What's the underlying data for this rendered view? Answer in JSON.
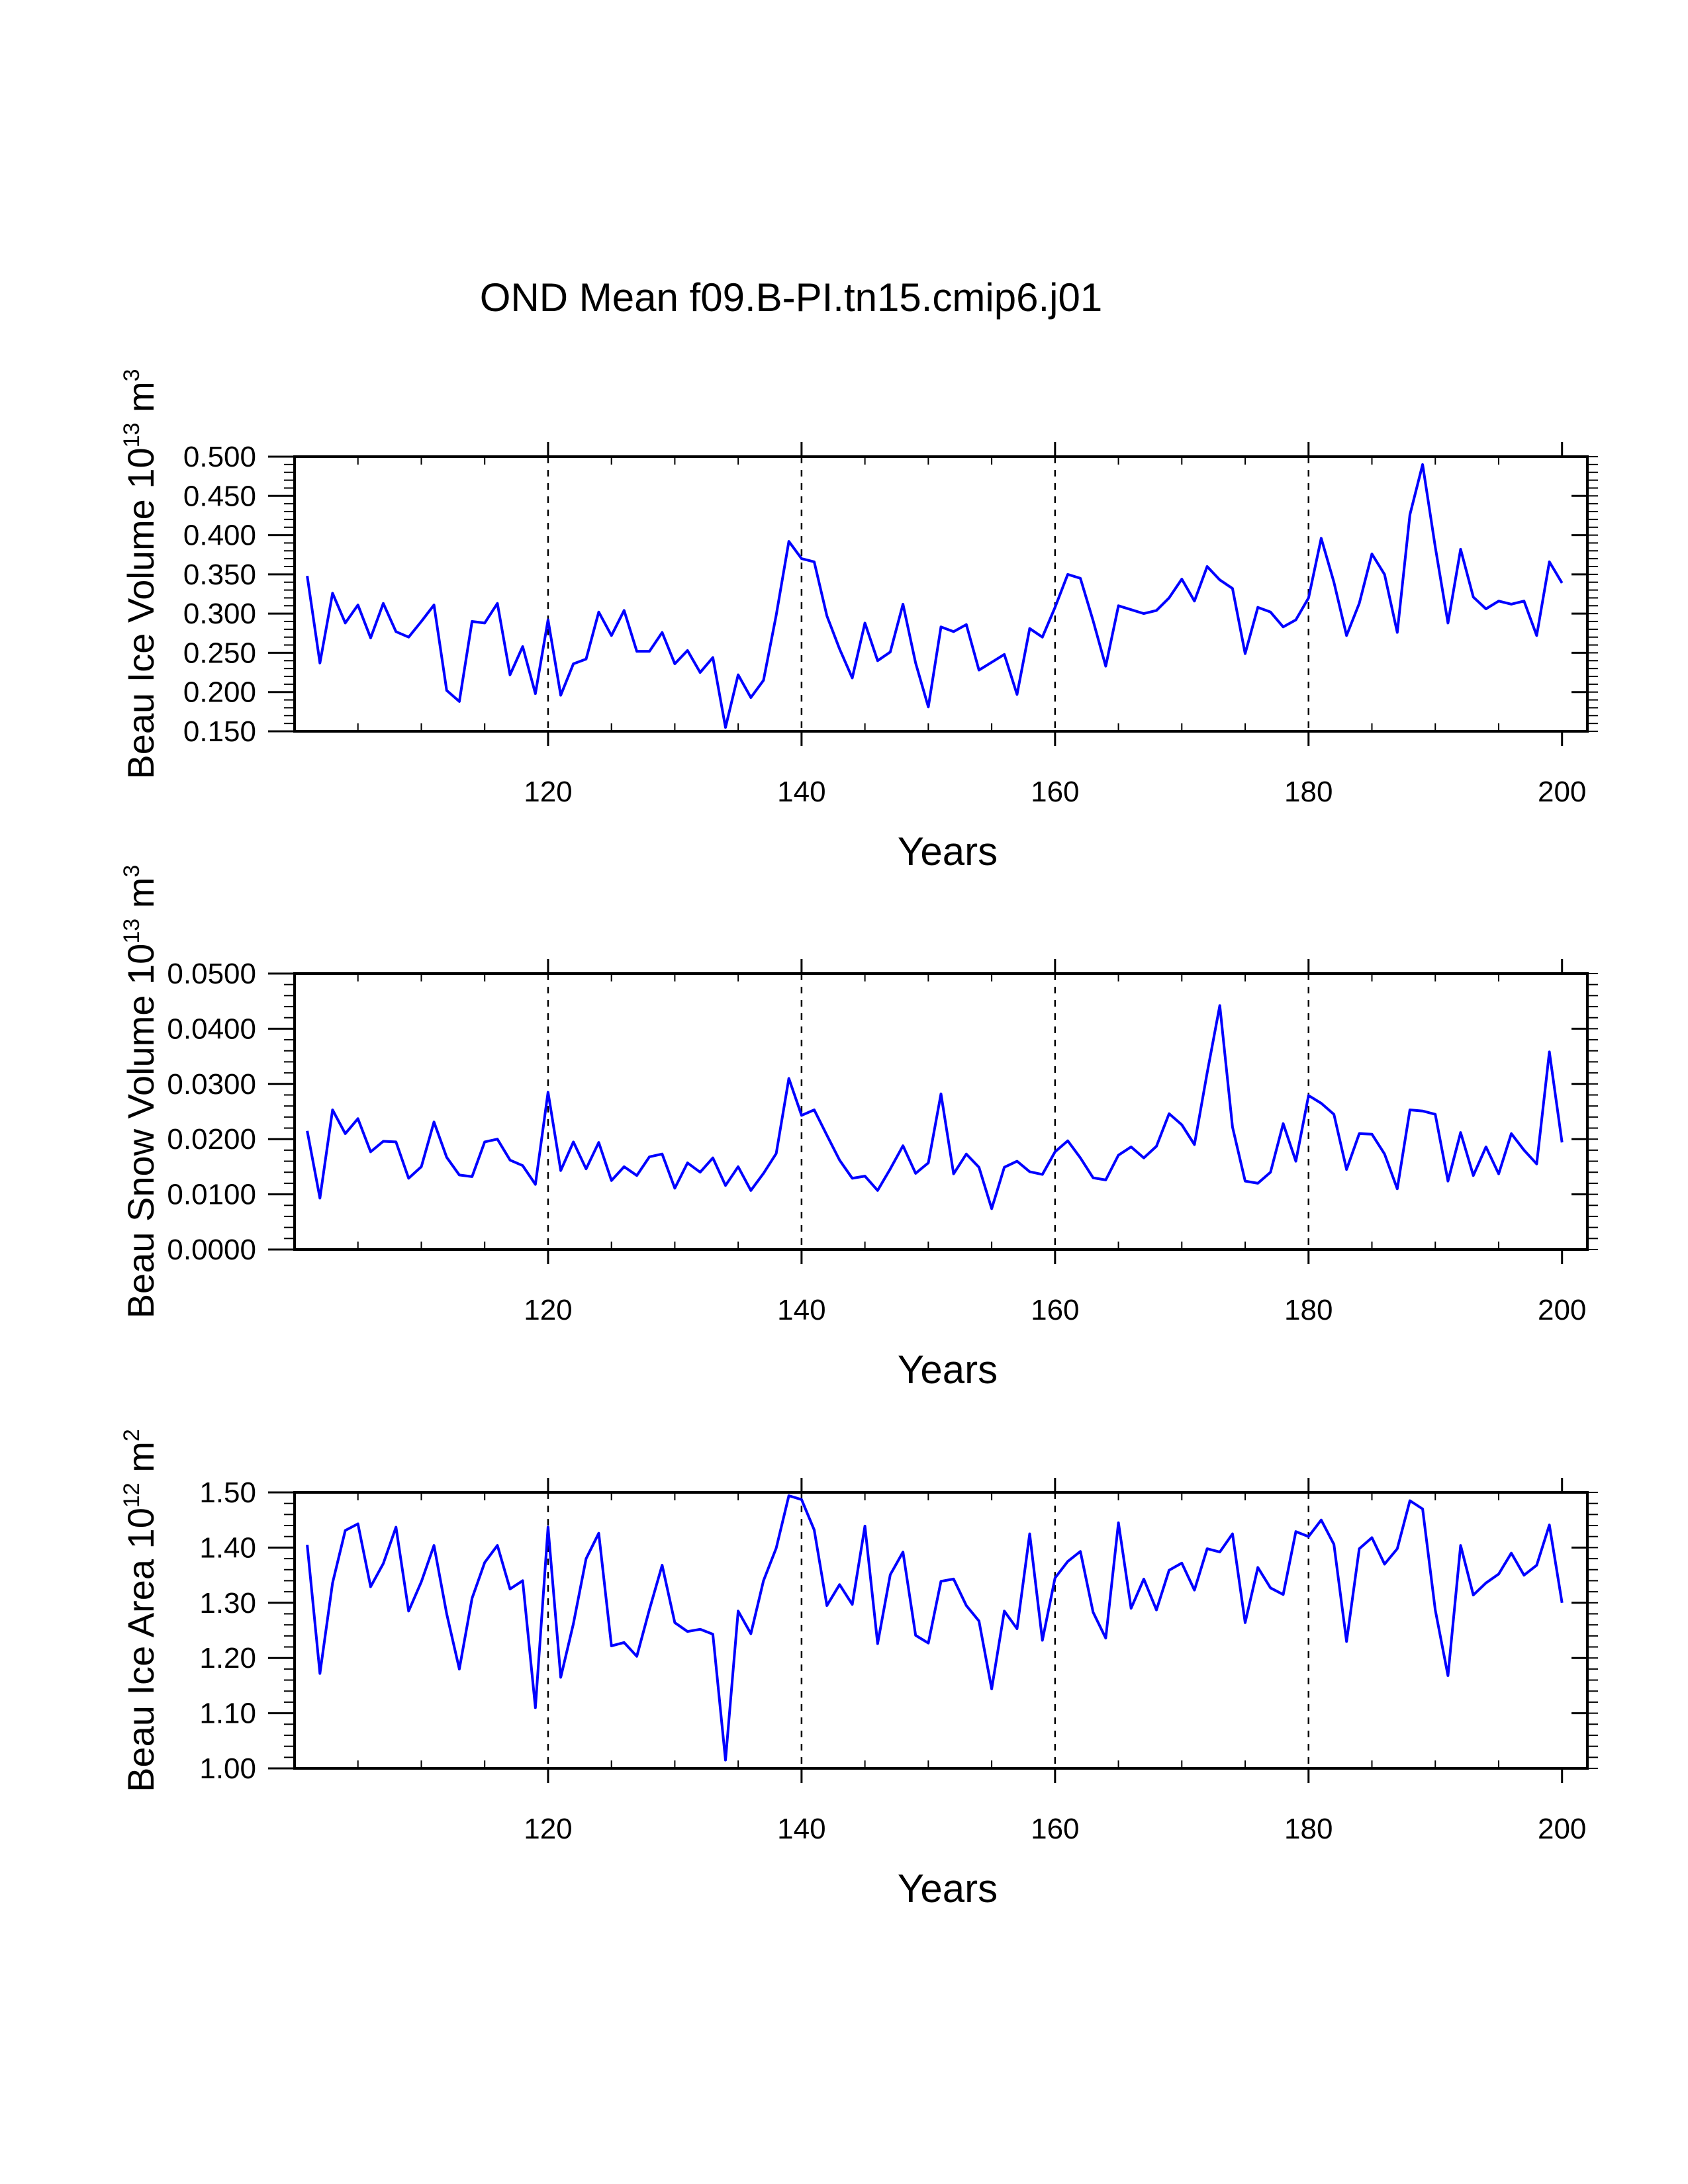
{
  "title": "OND Mean f09.B-PI.tn15.cmip6.j01",
  "colors": {
    "series": "#0000ff",
    "axes": "#000000",
    "background": "#ffffff"
  },
  "chart_data": [
    {
      "type": "line",
      "name": "ice-volume",
      "xlabel": "Years",
      "ylabel_main": "Beau Ice Volume 10",
      "ylabel_exp": "13",
      "ylabel_unit": " m",
      "ylabel_unit_exp": "3",
      "xlim": [
        100,
        202
      ],
      "ylim": [
        0.15,
        0.5
      ],
      "xticks": [
        120,
        140,
        160,
        180,
        200
      ],
      "xtick_labels": [
        "120",
        "140",
        "160",
        "180",
        "200"
      ],
      "yticks": [
        0.15,
        0.2,
        0.25,
        0.3,
        0.35,
        0.4,
        0.45,
        0.5
      ],
      "ytick_labels": [
        "0.150",
        "0.200",
        "0.250",
        "0.300",
        "0.350",
        "0.400",
        "0.450",
        "0.500"
      ],
      "grid_x": [
        120,
        140,
        160,
        180
      ],
      "x_start": 101,
      "values": [
        0.348,
        0.237,
        0.326,
        0.288,
        0.311,
        0.269,
        0.313,
        0.277,
        0.27,
        0.29,
        0.311,
        0.202,
        0.188,
        0.29,
        0.288,
        0.313,
        0.222,
        0.258,
        0.198,
        0.292,
        0.196,
        0.236,
        0.242,
        0.302,
        0.272,
        0.304,
        0.252,
        0.252,
        0.276,
        0.236,
        0.253,
        0.225,
        0.244,
        0.155,
        0.222,
        0.193,
        0.215,
        0.298,
        0.392,
        0.37,
        0.366,
        0.297,
        0.255,
        0.218,
        0.288,
        0.24,
        0.251,
        0.312,
        0.237,
        0.181,
        0.283,
        0.277,
        0.286,
        0.228,
        0.238,
        0.248,
        0.197,
        0.281,
        0.27,
        0.308,
        0.35,
        0.345,
        0.291,
        0.233,
        0.31,
        0.305,
        0.3,
        0.304,
        0.32,
        0.344,
        0.316,
        0.36,
        0.343,
        0.332,
        0.249,
        0.308,
        0.302,
        0.283,
        0.292,
        0.32,
        0.396,
        0.34,
        0.272,
        0.313,
        0.376,
        0.35,
        0.276,
        0.426,
        0.49,
        0.385,
        0.288,
        0.382,
        0.321,
        0.306,
        0.316,
        0.312,
        0.316,
        0.272,
        0.366,
        0.339
      ]
    },
    {
      "type": "line",
      "name": "snow-volume",
      "xlabel": "Years",
      "ylabel_main": "Beau Snow Volume 10",
      "ylabel_exp": "13",
      "ylabel_unit": " m",
      "ylabel_unit_exp": "3",
      "xlim": [
        100,
        202
      ],
      "ylim": [
        0.0,
        0.05
      ],
      "xticks": [
        120,
        140,
        160,
        180,
        200
      ],
      "xtick_labels": [
        "120",
        "140",
        "160",
        "180",
        "200"
      ],
      "yticks": [
        0.0,
        0.01,
        0.02,
        0.03,
        0.04,
        0.05
      ],
      "ytick_labels": [
        "0.0000",
        "0.0100",
        "0.0200",
        "0.0300",
        "0.0400",
        "0.0500"
      ],
      "grid_x": [
        120,
        140,
        160,
        180
      ],
      "x_start": 101,
      "values": [
        0.0215,
        0.0093,
        0.0253,
        0.021,
        0.0237,
        0.0177,
        0.0196,
        0.0195,
        0.0129,
        0.015,
        0.0231,
        0.0167,
        0.0135,
        0.0132,
        0.0195,
        0.02,
        0.0162,
        0.0152,
        0.0118,
        0.0285,
        0.0143,
        0.0195,
        0.0146,
        0.0194,
        0.0125,
        0.015,
        0.0134,
        0.0168,
        0.0173,
        0.0111,
        0.0157,
        0.014,
        0.0166,
        0.0116,
        0.015,
        0.0107,
        0.0138,
        0.0174,
        0.031,
        0.0243,
        0.0253,
        0.0207,
        0.0162,
        0.0129,
        0.0133,
        0.0107,
        0.0146,
        0.0188,
        0.0138,
        0.0157,
        0.0282,
        0.0137,
        0.0173,
        0.0149,
        0.0074,
        0.0149,
        0.016,
        0.0141,
        0.0136,
        0.0177,
        0.0197,
        0.0166,
        0.013,
        0.0126,
        0.0171,
        0.0186,
        0.0166,
        0.0187,
        0.0246,
        0.0226,
        0.019,
        0.032,
        0.0442,
        0.0222,
        0.0124,
        0.012,
        0.014,
        0.0228,
        0.016,
        0.0279,
        0.0265,
        0.0245,
        0.0145,
        0.021,
        0.0209,
        0.0173,
        0.011,
        0.0253,
        0.0251,
        0.0245,
        0.0124,
        0.0212,
        0.0134,
        0.0186,
        0.0137,
        0.021,
        0.018,
        0.0155,
        0.0358,
        0.0194
      ]
    },
    {
      "type": "line",
      "name": "ice-area",
      "xlabel": "Years",
      "ylabel_main": "Beau Ice Area 10",
      "ylabel_exp": "12",
      "ylabel_unit": " m",
      "ylabel_unit_exp": "2",
      "xlim": [
        100,
        202
      ],
      "ylim": [
        1.0,
        1.5
      ],
      "xticks": [
        120,
        140,
        160,
        180,
        200
      ],
      "xtick_labels": [
        "120",
        "140",
        "160",
        "180",
        "200"
      ],
      "yticks": [
        1.0,
        1.1,
        1.2,
        1.3,
        1.4,
        1.5
      ],
      "ytick_labels": [
        "1.00",
        "1.10",
        "1.20",
        "1.30",
        "1.40",
        "1.50"
      ],
      "grid_x": [
        120,
        140,
        160,
        180
      ],
      "x_start": 101,
      "values": [
        1.405,
        1.172,
        1.336,
        1.431,
        1.443,
        1.329,
        1.371,
        1.437,
        1.285,
        1.338,
        1.404,
        1.28,
        1.18,
        1.308,
        1.373,
        1.404,
        1.325,
        1.34,
        1.11,
        1.437,
        1.165,
        1.262,
        1.38,
        1.426,
        1.222,
        1.228,
        1.203,
        1.288,
        1.368,
        1.264,
        1.248,
        1.252,
        1.243,
        1.015,
        1.285,
        1.244,
        1.34,
        1.399,
        1.494,
        1.487,
        1.432,
        1.295,
        1.333,
        1.297,
        1.439,
        1.226,
        1.351,
        1.392,
        1.241,
        1.227,
        1.339,
        1.343,
        1.295,
        1.267,
        1.144,
        1.285,
        1.253,
        1.425,
        1.232,
        1.345,
        1.375,
        1.393,
        1.283,
        1.236,
        1.445,
        1.29,
        1.343,
        1.287,
        1.359,
        1.372,
        1.323,
        1.398,
        1.392,
        1.425,
        1.264,
        1.364,
        1.327,
        1.315,
        1.429,
        1.42,
        1.45,
        1.406,
        1.23,
        1.398,
        1.418,
        1.37,
        1.398,
        1.485,
        1.47,
        1.287,
        1.168,
        1.404,
        1.314,
        1.336,
        1.352,
        1.39,
        1.35,
        1.368,
        1.441,
        1.3
      ]
    }
  ]
}
